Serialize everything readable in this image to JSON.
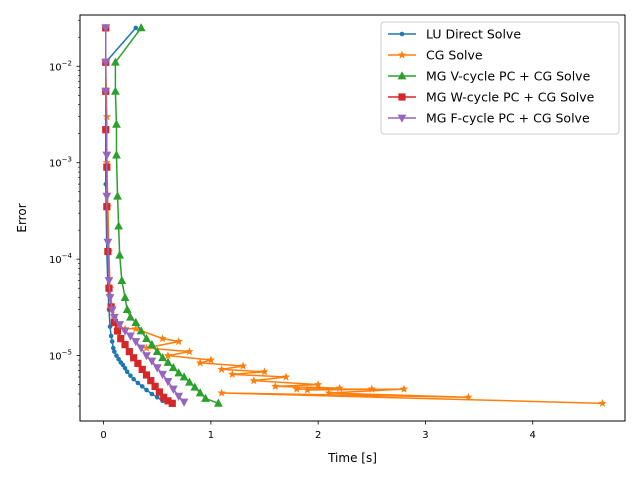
{
  "chart_data": {
    "type": "line",
    "xlabel": "Time [s]",
    "ylabel": "Error",
    "xlim": [
      -0.22,
      4.86
    ],
    "ylim": [
      2.1e-06,
      0.034
    ],
    "yscale": "log",
    "grid": false,
    "legend_position": "top-right",
    "x_ticks": [
      0,
      1,
      2,
      3,
      4
    ],
    "x_tick_labels": [
      "0",
      "1",
      "2",
      "3",
      "4"
    ],
    "y_ticks": [
      1e-05,
      0.0001,
      0.001,
      0.01
    ],
    "y_tick_labels": [
      "10^-5",
      "10^-4",
      "10^-3",
      "10^-2"
    ],
    "series": [
      {
        "name": "LU Direct Solve",
        "color": "#1f77b4",
        "marker": "dot",
        "x": [
          0.3,
          0.02,
          0.02,
          0.03,
          0.04,
          0.05,
          0.06,
          0.07,
          0.08,
          0.09,
          0.1,
          0.12,
          0.14,
          0.16,
          0.18,
          0.2,
          0.22,
          0.25,
          0.28,
          0.32,
          0.36,
          0.4,
          0.45,
          0.5,
          0.55
        ],
        "y": [
          0.025,
          0.011,
          0.0006,
          0.00012,
          5e-05,
          3e-05,
          2e-05,
          1.6e-05,
          1.4e-05,
          1.2e-05,
          1.1e-05,
          1e-05,
          9.2e-06,
          8.5e-06,
          8e-06,
          7.4e-06,
          6.8e-06,
          6.2e-06,
          5.7e-06,
          5.2e-06,
          4.8e-06,
          4.4e-06,
          4e-06,
          3.7e-06,
          3.4e-06
        ]
      },
      {
        "name": "CG Solve",
        "color": "#ff7f0e",
        "marker": "star",
        "x": [
          0.02,
          0.02,
          0.03,
          0.03,
          0.04,
          0.05,
          0.06,
          0.08,
          0.1,
          0.13,
          0.2,
          0.3,
          0.55,
          0.7,
          0.4,
          0.8,
          0.6,
          1.0,
          0.9,
          1.3,
          1.1,
          1.5,
          1.2,
          1.7,
          1.4,
          2.0,
          1.6,
          2.2,
          1.8,
          2.5,
          1.9,
          2.8,
          2.1,
          3.4,
          1.1,
          4.65
        ],
        "y": [
          0.025,
          0.011,
          0.003,
          0.001,
          0.00035,
          0.00012,
          5e-05,
          3e-05,
          2.4e-05,
          2e-05,
          1.9e-05,
          1.9e-05,
          1.5e-05,
          1.4e-05,
          1.2e-05,
          1.1e-05,
          1e-05,
          9e-06,
          8.4e-06,
          7.8e-06,
          7.2e-06,
          6.8e-06,
          6.4e-06,
          6e-06,
          5.5e-06,
          5e-06,
          4.8e-06,
          4.6e-06,
          4.5e-06,
          4.5e-06,
          4.4e-06,
          4.5e-06,
          4.1e-06,
          3.7e-06,
          4.1e-06,
          3.2e-06
        ]
      },
      {
        "name": "MG V-cycle PC + CG Solve",
        "color": "#2ca02c",
        "marker": "triangle-up",
        "x": [
          0.35,
          0.11,
          0.11,
          0.12,
          0.12,
          0.13,
          0.14,
          0.15,
          0.17,
          0.2,
          0.22,
          0.25,
          0.3,
          0.35,
          0.4,
          0.45,
          0.5,
          0.55,
          0.6,
          0.65,
          0.7,
          0.75,
          0.8,
          0.85,
          0.9,
          0.95,
          1.07
        ],
        "y": [
          0.025,
          0.011,
          0.0055,
          0.0025,
          0.0012,
          0.00045,
          0.00022,
          0.00011,
          6e-05,
          4e-05,
          3e-05,
          2.5e-05,
          2.2e-05,
          1.8e-05,
          1.5e-05,
          1.3e-05,
          1.1e-05,
          9.5e-06,
          8.5e-06,
          7.5e-06,
          6.6e-06,
          6e-06,
          5.3e-06,
          4.7e-06,
          4.1e-06,
          3.6e-06,
          3.2e-06
        ]
      },
      {
        "name": "MG W-cycle PC + CG Solve",
        "color": "#d62728",
        "marker": "square",
        "x": [
          0.02,
          0.02,
          0.02,
          0.02,
          0.03,
          0.03,
          0.04,
          0.05,
          0.07,
          0.1,
          0.13,
          0.16,
          0.2,
          0.24,
          0.28,
          0.32,
          0.36,
          0.4,
          0.44,
          0.48,
          0.52,
          0.56,
          0.6,
          0.64
        ],
        "y": [
          0.025,
          0.011,
          0.0055,
          0.0022,
          0.0009,
          0.00035,
          0.00012,
          5e-05,
          3.2e-05,
          2.2e-05,
          1.8e-05,
          1.5e-05,
          1.3e-05,
          1.1e-05,
          9.5e-06,
          8.3e-06,
          7.2e-06,
          6.3e-06,
          5.5e-06,
          4.8e-06,
          4.2e-06,
          3.7e-06,
          3.4e-06,
          3.2e-06
        ]
      },
      {
        "name": "MG F-cycle PC + CG Solve",
        "color": "#9467bd",
        "marker": "triangle-down",
        "x": [
          0.02,
          0.02,
          0.02,
          0.03,
          0.03,
          0.04,
          0.05,
          0.06,
          0.08,
          0.1,
          0.15,
          0.2,
          0.25,
          0.3,
          0.35,
          0.4,
          0.45,
          0.5,
          0.55,
          0.6,
          0.65,
          0.7,
          0.75
        ],
        "y": [
          0.025,
          0.011,
          0.0055,
          0.0012,
          0.00045,
          0.00015,
          6e-05,
          4e-05,
          3e-05,
          2.5e-05,
          2.1e-05,
          1.8e-05,
          1.6e-05,
          1.4e-05,
          1.2e-05,
          1e-05,
          8.8e-06,
          7.5e-06,
          6.4e-06,
          5.4e-06,
          4.5e-06,
          3.8e-06,
          3.3e-06
        ]
      }
    ]
  }
}
